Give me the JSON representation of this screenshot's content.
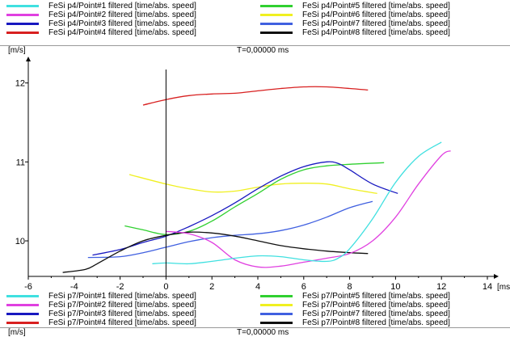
{
  "header": {
    "unit": "[m/s]",
    "time_readout": "T=0,00000 ms"
  },
  "footer": {
    "unit": "[m/s]",
    "time_readout": "T=0,00000 ms"
  },
  "legend_top": {
    "col1": [
      {
        "label": "FeSi p4/Point#1 filtered [time/abs. speed]",
        "color": "#40e0e0"
      },
      {
        "label": "FeSi p4/Point#2 filtered [time/abs. speed]",
        "color": "#e040e0"
      },
      {
        "label": "FeSi p4/Point#3 filtered [time/abs. speed]",
        "color": "#1818c0"
      },
      {
        "label": "FeSi p4/Point#4 filtered [time/abs. speed]",
        "color": "#d82020"
      }
    ],
    "col2": [
      {
        "label": "FeSi p4/Point#5 filtered [time/abs. speed]",
        "color": "#30d030"
      },
      {
        "label": "FeSi p4/Point#6 filtered [time/abs. speed]",
        "color": "#f0f020"
      },
      {
        "label": "FeSi p4/Point#7 filtered [time/abs. speed]",
        "color": "#4060e0"
      },
      {
        "label": "FeSi p4/Point#8 filtered [time/abs. speed]",
        "color": "#101010"
      }
    ]
  },
  "legend_bottom": {
    "col1": [
      {
        "label": "FeSi p7/Point#1 filtered [time/abs. speed]",
        "color": "#40e0e0"
      },
      {
        "label": "FeSi p7/Point#2 filtered [time/abs. speed]",
        "color": "#e040e0"
      },
      {
        "label": "FeSi p7/Point#3 filtered [time/abs. speed]",
        "color": "#1818c0"
      },
      {
        "label": "FeSi p7/Point#4 filtered [time/abs. speed]",
        "color": "#d82020"
      }
    ],
    "col2": [
      {
        "label": "FeSi p7/Point#5 filtered [time/abs. speed]",
        "color": "#30d030"
      },
      {
        "label": "FeSi p7/Point#6 filtered [time/abs. speed]",
        "color": "#f0f020"
      },
      {
        "label": "FeSi p7/Point#7 filtered [time/abs. speed]",
        "color": "#4060e0"
      },
      {
        "label": "FeSi p7/Point#8 filtered [time/abs. speed]",
        "color": "#101010"
      }
    ]
  },
  "chart_data": {
    "type": "line",
    "xlabel": "ms",
    "ylabel": "m/s",
    "xlim": [
      -6,
      14
    ],
    "ylim": [
      9.55,
      12.15
    ],
    "x_ticks": [
      -6,
      -4,
      -2,
      0,
      2,
      4,
      6,
      8,
      10,
      12,
      14
    ],
    "y_ticks": [
      10,
      11,
      12
    ],
    "grid": false,
    "series": [
      {
        "name": "Point#4",
        "color": "#d82020",
        "x": [
          -1.0,
          0,
          1,
          2,
          3,
          4,
          5,
          6,
          7,
          8,
          8.8
        ],
        "y": [
          11.72,
          11.79,
          11.84,
          11.86,
          11.87,
          11.9,
          11.93,
          11.95,
          11.95,
          11.93,
          11.91
        ]
      },
      {
        "name": "Point#6",
        "color": "#f0f020",
        "x": [
          -1.6,
          0,
          1,
          2,
          3,
          4,
          5,
          6,
          7,
          8,
          9.2
        ],
        "y": [
          10.84,
          10.72,
          10.66,
          10.62,
          10.63,
          10.68,
          10.72,
          10.73,
          10.72,
          10.66,
          10.6
        ]
      },
      {
        "name": "Point#5",
        "color": "#30d030",
        "x": [
          -1.8,
          -1,
          0,
          1,
          2,
          3,
          4,
          5,
          6,
          7,
          8,
          9.5
        ],
        "y": [
          10.19,
          10.14,
          10.08,
          10.12,
          10.25,
          10.43,
          10.6,
          10.78,
          10.9,
          10.95,
          10.97,
          10.99
        ]
      },
      {
        "name": "Point#3",
        "color": "#1818c0",
        "x": [
          -3.2,
          -2,
          -1,
          0,
          1,
          2,
          3,
          4,
          5,
          6,
          7,
          7.5,
          8,
          9,
          10.1
        ],
        "y": [
          9.82,
          9.89,
          9.98,
          10.06,
          10.18,
          10.32,
          10.48,
          10.66,
          10.82,
          10.94,
          11.0,
          10.98,
          10.9,
          10.72,
          10.6
        ]
      },
      {
        "name": "Point#7",
        "color": "#4060e0",
        "x": [
          -3.4,
          -2,
          -1,
          0,
          1,
          2,
          3,
          4,
          5,
          6,
          7,
          8,
          9
        ],
        "y": [
          9.79,
          9.8,
          9.85,
          9.92,
          9.99,
          10.04,
          10.07,
          10.09,
          10.13,
          10.2,
          10.3,
          10.42,
          10.5
        ]
      },
      {
        "name": "Point#8",
        "color": "#101010",
        "x": [
          -4.5,
          -3.5,
          -3,
          -2,
          -1,
          0,
          1,
          2,
          3,
          4,
          5,
          6,
          7,
          8,
          8.8
        ],
        "y": [
          9.6,
          9.64,
          9.71,
          9.87,
          10.0,
          10.07,
          10.11,
          10.1,
          10.06,
          10.0,
          9.94,
          9.9,
          9.87,
          9.85,
          9.84
        ]
      },
      {
        "name": "Point#2",
        "color": "#e040e0",
        "x": [
          0,
          1,
          2,
          3,
          4,
          5,
          6,
          7,
          8,
          9,
          10,
          11,
          12,
          12.4
        ],
        "y": [
          10.12,
          10.09,
          9.98,
          9.76,
          9.67,
          9.68,
          9.73,
          9.78,
          9.84,
          10.0,
          10.3,
          10.72,
          11.08,
          11.14
        ]
      },
      {
        "name": "Point#1",
        "color": "#40e0e0",
        "x": [
          -0.6,
          0,
          1,
          2,
          3,
          4,
          5,
          6,
          7,
          7.5,
          8,
          9,
          10,
          11,
          12
        ],
        "y": [
          9.71,
          9.72,
          9.71,
          9.74,
          9.78,
          9.81,
          9.8,
          9.76,
          9.74,
          9.78,
          9.9,
          10.28,
          10.74,
          11.07,
          11.25
        ]
      }
    ]
  }
}
